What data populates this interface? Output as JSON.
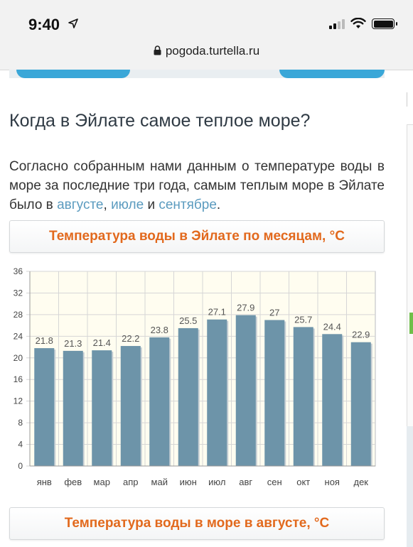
{
  "status_bar": {
    "time": "9:40"
  },
  "browser": {
    "url": "pogoda.turtella.ru"
  },
  "article": {
    "heading": "Когда в Эйлате самое теплое море?",
    "paragraph_text": "Согласно собранным нами данным о температуре воды в море за последние три года, самым теплым море в Эйлате было в ",
    "link_1": "августе",
    "sep_1": ", ",
    "link_2": "июле",
    "sep_2": " и ",
    "link_3": "сентябре",
    "end": "."
  },
  "chart_section": {
    "title": "Температура воды в Эйлате по месяцам, °C"
  },
  "next_section": {
    "title": "Температура воды в море в августе, °C"
  },
  "colors": {
    "accent": "#e2691d",
    "bar": "#6d94a9",
    "link": "#5b9bbf",
    "grid_bg": "#fffdf0"
  },
  "chart_data": {
    "type": "bar",
    "title": "Температура воды в Эйлате по месяцам, °C",
    "categories": [
      "янв",
      "фев",
      "мар",
      "апр",
      "май",
      "июн",
      "июл",
      "авг",
      "сен",
      "окт",
      "ноя",
      "дек"
    ],
    "values": [
      21.8,
      21.3,
      21.4,
      22.2,
      23.8,
      25.5,
      27.1,
      27.9,
      27,
      25.7,
      24.4,
      22.9
    ],
    "value_labels": [
      "21.8",
      "21.3",
      "21.4",
      "22.2",
      "23.8",
      "25.5",
      "27.1",
      "27.9",
      "27",
      "25.7",
      "24.4",
      "22.9"
    ],
    "yticks": [
      "0",
      "4",
      "8",
      "12",
      "16",
      "20",
      "24",
      "28",
      "32",
      "36"
    ],
    "ylim": [
      0,
      36
    ],
    "grid": true
  }
}
